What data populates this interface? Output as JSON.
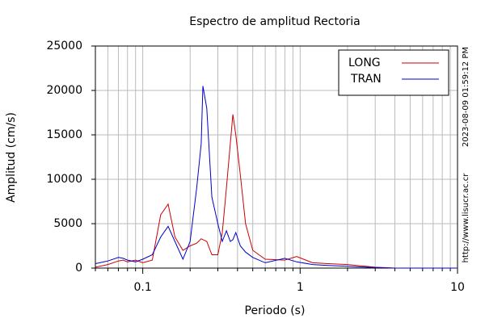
{
  "chart_data": {
    "type": "line",
    "title": "Espectro de amplitud Rectoria",
    "xlabel": "Periodo (s)",
    "ylabel": "Amplitud (cm/s)",
    "annotations": [
      "2023-08-09 01:59:12 PM",
      "http://www.lisucr.ac.cr"
    ],
    "x": [
      0.05,
      0.06,
      0.07,
      0.075,
      0.08,
      0.09,
      0.1,
      0.115,
      0.13,
      0.145,
      0.16,
      0.18,
      0.2,
      0.22,
      0.235,
      0.241,
      0.255,
      0.275,
      0.3,
      0.32,
      0.34,
      0.36,
      0.374,
      0.39,
      0.417,
      0.45,
      0.5,
      0.6,
      0.8,
      0.95,
      1.2,
      1.5,
      2,
      2.3,
      3,
      4,
      6,
      10
    ],
    "series": [
      {
        "name": "LONG",
        "color": "#cc0000",
        "values": [
          100,
          400,
          800,
          900,
          700,
          900,
          600,
          900,
          6000,
          7200,
          3500,
          2000,
          2500,
          2800,
          3300,
          3200,
          3000,
          1500,
          1500,
          4000,
          9000,
          14000,
          17300,
          15000,
          10500,
          5000,
          2000,
          1000,
          900,
          1300,
          600,
          500,
          400,
          300,
          100,
          0,
          0,
          0
        ]
      },
      {
        "name": "TRAN",
        "color": "#0000cc",
        "values": [
          500,
          800,
          1200,
          1100,
          900,
          700,
          1000,
          1500,
          3500,
          4700,
          3000,
          1000,
          3000,
          9000,
          14000,
          20500,
          18000,
          8000,
          5000,
          3000,
          4200,
          3000,
          3200,
          4000,
          2500,
          1800,
          1200,
          600,
          1100,
          700,
          400,
          300,
          200,
          150,
          50,
          0,
          0,
          0
        ]
      }
    ],
    "xscale": "log",
    "xlim": [
      0.05,
      10
    ],
    "xticks": [
      0.1,
      1,
      10
    ],
    "xminorticks": [
      0.05,
      0.06,
      0.07,
      0.08,
      0.09,
      0.2,
      0.3,
      0.4,
      0.5,
      0.6,
      0.7,
      0.8,
      0.9,
      2,
      3,
      4,
      5,
      6,
      7,
      8,
      9
    ],
    "ylim": [
      0,
      25000
    ],
    "yticks": [
      0,
      5000,
      10000,
      15000,
      20000,
      25000
    ],
    "grid": true,
    "legend": "upper right"
  }
}
